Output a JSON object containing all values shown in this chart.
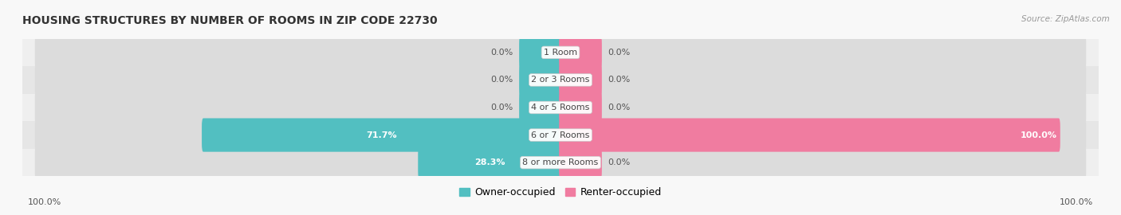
{
  "title": "HOUSING STRUCTURES BY NUMBER OF ROOMS IN ZIP CODE 22730",
  "source": "Source: ZipAtlas.com",
  "categories": [
    "1 Room",
    "2 or 3 Rooms",
    "4 or 5 Rooms",
    "6 or 7 Rooms",
    "8 or more Rooms"
  ],
  "owner_values": [
    0.0,
    0.0,
    0.0,
    71.7,
    28.3
  ],
  "renter_values": [
    0.0,
    0.0,
    0.0,
    100.0,
    0.0
  ],
  "owner_color": "#52BFC1",
  "renter_color": "#F07CA0",
  "row_bg_colors": [
    "#EFEFEF",
    "#E6E6E6"
  ],
  "track_color": "#DCDCDC",
  "label_text_color": "#555555",
  "white_label_color": "#FFFFFF",
  "center_label_color": "#444444",
  "owner_label": "Owner-occupied",
  "renter_label": "Renter-occupied",
  "title_fontsize": 10,
  "label_fontsize": 8,
  "legend_fontsize": 9,
  "bottom_left_label": "100.0%",
  "bottom_right_label": "100.0%",
  "x_range": 100,
  "small_bar_size": 8.0
}
